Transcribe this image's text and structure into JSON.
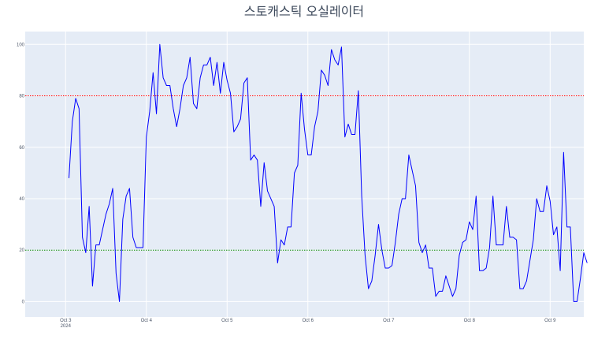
{
  "chart_data": {
    "type": "line",
    "title": "스토캐스틱 오실레이터",
    "xlabel": "",
    "ylabel": "",
    "x_tick_labels": [
      "Oct 3",
      "Oct 4",
      "Oct 5",
      "Oct 6",
      "Oct 7",
      "Oct 8",
      "Oct 9"
    ],
    "x_tick_year": "2024",
    "x_tick_positions": [
      0,
      24,
      48,
      72,
      96,
      120,
      144
    ],
    "xlim": [
      -12,
      154
    ],
    "y_tick_labels": [
      "0",
      "20",
      "40",
      "60",
      "80",
      "100"
    ],
    "y_ticks": [
      0,
      20,
      40,
      60,
      80,
      100
    ],
    "ylim": [
      -6,
      105
    ],
    "grid": true,
    "colors": {
      "plot_bg": "#e5ecf6",
      "grid": "#ffffff",
      "series": "#0000ff",
      "overbought": "#ff0000",
      "oversold": "#008000"
    },
    "reference_lines": [
      {
        "y": 80,
        "color": "#ff0000",
        "style": "dotted"
      },
      {
        "y": 20,
        "color": "#008000",
        "style": "dotted"
      }
    ],
    "series": [
      {
        "x_start": 1,
        "x_step": 1,
        "values": [
          48,
          70,
          79,
          75,
          25,
          19,
          37,
          6,
          22,
          22,
          28,
          34,
          38,
          44,
          11,
          0,
          32,
          41,
          44,
          25,
          21,
          21,
          21,
          64,
          74,
          89,
          73,
          100,
          87,
          84,
          84,
          75,
          68,
          75,
          84,
          87,
          95,
          77,
          75,
          87,
          92,
          92,
          95,
          84,
          93,
          81,
          93,
          86,
          81,
          66,
          68,
          71,
          85,
          87,
          55,
          57,
          55,
          37,
          54,
          43,
          40,
          37,
          15,
          24,
          22,
          29,
          29,
          50,
          53,
          81,
          67,
          57,
          57,
          68,
          74,
          90,
          88,
          84,
          98,
          94,
          92,
          99,
          64,
          69,
          65,
          65,
          82,
          41,
          18,
          5,
          8,
          18,
          30,
          20,
          13,
          13,
          14,
          23,
          34,
          40,
          40,
          57,
          51,
          45,
          23,
          19,
          22,
          13,
          13,
          2,
          4,
          4,
          10,
          6,
          2,
          5,
          18,
          23,
          24,
          31,
          28,
          41,
          12,
          12,
          13,
          21,
          41,
          22,
          22,
          22,
          37,
          25,
          25,
          24,
          5,
          5,
          8,
          16,
          24,
          40,
          35,
          35,
          45,
          39,
          26,
          29,
          12,
          58,
          29,
          29,
          0,
          0,
          9,
          19,
          15
        ]
      }
    ]
  }
}
